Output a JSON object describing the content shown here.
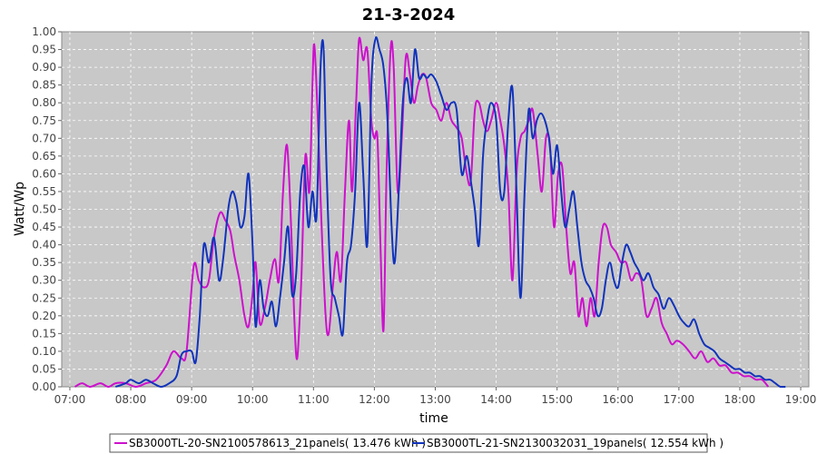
{
  "chart_data": {
    "type": "line",
    "title": "21-3-2024",
    "xlabel": "time",
    "ylabel": "Watt/Wp",
    "ylim": [
      0,
      1.0
    ],
    "xlim": [
      "06:52",
      "19:08"
    ],
    "x_ticks": [
      "07:00",
      "08:00",
      "09:00",
      "10:00",
      "11:00",
      "12:00",
      "13:00",
      "14:00",
      "15:00",
      "16:00",
      "17:00",
      "18:00",
      "19:00"
    ],
    "y_ticks": [
      "0.00",
      "0.05",
      "0.10",
      "0.15",
      "0.20",
      "0.25",
      "0.30",
      "0.35",
      "0.40",
      "0.45",
      "0.50",
      "0.55",
      "0.60",
      "0.65",
      "0.70",
      "0.75",
      "0.80",
      "0.85",
      "0.90",
      "0.95",
      "1.00"
    ],
    "grid": true,
    "legend_position": "bottom",
    "series": [
      {
        "name": "SB3000TL-20-SN2100578613_21panels( 13.476 kWh )",
        "color": "#cc11cc",
        "points": [
          [
            "07:05",
            0.0
          ],
          [
            "07:12",
            0.01
          ],
          [
            "07:20",
            0.0
          ],
          [
            "07:30",
            0.01
          ],
          [
            "07:38",
            0.0
          ],
          [
            "07:45",
            0.01
          ],
          [
            "07:55",
            0.01
          ],
          [
            "08:05",
            0.0
          ],
          [
            "08:15",
            0.01
          ],
          [
            "08:25",
            0.02
          ],
          [
            "08:35",
            0.06
          ],
          [
            "08:42",
            0.1
          ],
          [
            "08:50",
            0.08
          ],
          [
            "08:55",
            0.1
          ],
          [
            "09:02",
            0.34
          ],
          [
            "09:07",
            0.3
          ],
          [
            "09:12",
            0.28
          ],
          [
            "09:17",
            0.3
          ],
          [
            "09:22",
            0.42
          ],
          [
            "09:28",
            0.49
          ],
          [
            "09:33",
            0.47
          ],
          [
            "09:38",
            0.44
          ],
          [
            "09:42",
            0.37
          ],
          [
            "09:47",
            0.3
          ],
          [
            "09:52",
            0.2
          ],
          [
            "09:56",
            0.17
          ],
          [
            "10:00",
            0.26
          ],
          [
            "10:03",
            0.35
          ],
          [
            "10:07",
            0.18
          ],
          [
            "10:12",
            0.22
          ],
          [
            "10:17",
            0.3
          ],
          [
            "10:22",
            0.36
          ],
          [
            "10:26",
            0.3
          ],
          [
            "10:30",
            0.55
          ],
          [
            "10:34",
            0.68
          ],
          [
            "10:38",
            0.45
          ],
          [
            "10:41",
            0.2
          ],
          [
            "10:44",
            0.08
          ],
          [
            "10:48",
            0.3
          ],
          [
            "10:52",
            0.65
          ],
          [
            "10:56",
            0.55
          ],
          [
            "10:59",
            0.85
          ],
          [
            "11:01",
            0.96
          ],
          [
            "11:05",
            0.7
          ],
          [
            "11:08",
            0.45
          ],
          [
            "11:12",
            0.2
          ],
          [
            "11:15",
            0.15
          ],
          [
            "11:19",
            0.28
          ],
          [
            "11:23",
            0.38
          ],
          [
            "11:27",
            0.3
          ],
          [
            "11:31",
            0.55
          ],
          [
            "11:35",
            0.75
          ],
          [
            "11:38",
            0.55
          ],
          [
            "11:42",
            0.8
          ],
          [
            "11:45",
            0.98
          ],
          [
            "11:49",
            0.92
          ],
          [
            "11:53",
            0.95
          ],
          [
            "11:57",
            0.75
          ],
          [
            "12:00",
            0.7
          ],
          [
            "12:03",
            0.7
          ],
          [
            "12:06",
            0.4
          ],
          [
            "12:09",
            0.16
          ],
          [
            "12:12",
            0.6
          ],
          [
            "12:16",
            0.95
          ],
          [
            "12:19",
            0.9
          ],
          [
            "12:23",
            0.55
          ],
          [
            "12:27",
            0.7
          ],
          [
            "12:31",
            0.93
          ],
          [
            "12:35",
            0.88
          ],
          [
            "12:39",
            0.8
          ],
          [
            "12:43",
            0.85
          ],
          [
            "12:47",
            0.88
          ],
          [
            "12:51",
            0.87
          ],
          [
            "12:56",
            0.8
          ],
          [
            "13:01",
            0.78
          ],
          [
            "13:06",
            0.75
          ],
          [
            "13:11",
            0.8
          ],
          [
            "13:16",
            0.75
          ],
          [
            "13:21",
            0.73
          ],
          [
            "13:26",
            0.7
          ],
          [
            "13:31",
            0.6
          ],
          [
            "13:35",
            0.58
          ],
          [
            "13:39",
            0.78
          ],
          [
            "13:43",
            0.8
          ],
          [
            "13:47",
            0.75
          ],
          [
            "13:51",
            0.72
          ],
          [
            "13:55",
            0.75
          ],
          [
            "14:00",
            0.8
          ],
          [
            "14:04",
            0.75
          ],
          [
            "14:08",
            0.68
          ],
          [
            "14:12",
            0.55
          ],
          [
            "14:16",
            0.3
          ],
          [
            "14:20",
            0.6
          ],
          [
            "14:24",
            0.7
          ],
          [
            "14:28",
            0.72
          ],
          [
            "14:32",
            0.75
          ],
          [
            "14:36",
            0.78
          ],
          [
            "14:41",
            0.65
          ],
          [
            "14:45",
            0.55
          ],
          [
            "14:49",
            0.7
          ],
          [
            "14:53",
            0.68
          ],
          [
            "14:57",
            0.45
          ],
          [
            "15:01",
            0.6
          ],
          [
            "15:05",
            0.62
          ],
          [
            "15:09",
            0.45
          ],
          [
            "15:13",
            0.32
          ],
          [
            "15:17",
            0.35
          ],
          [
            "15:21",
            0.2
          ],
          [
            "15:25",
            0.25
          ],
          [
            "15:29",
            0.17
          ],
          [
            "15:33",
            0.25
          ],
          [
            "15:37",
            0.2
          ],
          [
            "15:41",
            0.35
          ],
          [
            "15:45",
            0.45
          ],
          [
            "15:49",
            0.45
          ],
          [
            "15:53",
            0.4
          ],
          [
            "15:58",
            0.38
          ],
          [
            "16:03",
            0.35
          ],
          [
            "16:08",
            0.35
          ],
          [
            "16:13",
            0.3
          ],
          [
            "16:18",
            0.32
          ],
          [
            "16:23",
            0.3
          ],
          [
            "16:28",
            0.2
          ],
          [
            "16:33",
            0.22
          ],
          [
            "16:38",
            0.25
          ],
          [
            "16:43",
            0.18
          ],
          [
            "16:48",
            0.15
          ],
          [
            "16:53",
            0.12
          ],
          [
            "16:58",
            0.13
          ],
          [
            "17:04",
            0.12
          ],
          [
            "17:10",
            0.1
          ],
          [
            "17:16",
            0.08
          ],
          [
            "17:22",
            0.1
          ],
          [
            "17:28",
            0.07
          ],
          [
            "17:34",
            0.08
          ],
          [
            "17:40",
            0.06
          ],
          [
            "17:46",
            0.06
          ],
          [
            "17:52",
            0.04
          ],
          [
            "17:58",
            0.04
          ],
          [
            "18:04",
            0.03
          ],
          [
            "18:10",
            0.03
          ],
          [
            "18:16",
            0.02
          ],
          [
            "18:22",
            0.02
          ],
          [
            "18:28",
            0.0
          ]
        ]
      },
      {
        "name": "SB3000TL-21-SN2130032031_19panels( 12.554 kWh )",
        "color": "#1133bb",
        "points": [
          [
            "07:45",
            0.0
          ],
          [
            "07:55",
            0.01
          ],
          [
            "08:00",
            0.02
          ],
          [
            "08:08",
            0.01
          ],
          [
            "08:15",
            0.02
          ],
          [
            "08:22",
            0.01
          ],
          [
            "08:30",
            0.0
          ],
          [
            "08:38",
            0.01
          ],
          [
            "08:45",
            0.03
          ],
          [
            "08:50",
            0.09
          ],
          [
            "08:55",
            0.1
          ],
          [
            "09:00",
            0.1
          ],
          [
            "09:04",
            0.07
          ],
          [
            "09:08",
            0.2
          ],
          [
            "09:12",
            0.4
          ],
          [
            "09:17",
            0.35
          ],
          [
            "09:22",
            0.42
          ],
          [
            "09:27",
            0.3
          ],
          [
            "09:31",
            0.36
          ],
          [
            "09:36",
            0.5
          ],
          [
            "09:40",
            0.55
          ],
          [
            "09:44",
            0.52
          ],
          [
            "09:48",
            0.45
          ],
          [
            "09:52",
            0.48
          ],
          [
            "09:56",
            0.6
          ],
          [
            "10:00",
            0.4
          ],
          [
            "10:03",
            0.17
          ],
          [
            "10:07",
            0.3
          ],
          [
            "10:11",
            0.22
          ],
          [
            "10:15",
            0.2
          ],
          [
            "10:19",
            0.24
          ],
          [
            "10:23",
            0.17
          ],
          [
            "10:27",
            0.25
          ],
          [
            "10:31",
            0.35
          ],
          [
            "10:35",
            0.45
          ],
          [
            "10:39",
            0.26
          ],
          [
            "10:43",
            0.32
          ],
          [
            "10:47",
            0.55
          ],
          [
            "10:51",
            0.62
          ],
          [
            "10:55",
            0.45
          ],
          [
            "10:59",
            0.55
          ],
          [
            "11:03",
            0.48
          ],
          [
            "11:07",
            0.9
          ],
          [
            "11:10",
            0.95
          ],
          [
            "11:13",
            0.6
          ],
          [
            "11:17",
            0.3
          ],
          [
            "11:21",
            0.25
          ],
          [
            "11:25",
            0.2
          ],
          [
            "11:29",
            0.15
          ],
          [
            "11:33",
            0.35
          ],
          [
            "11:37",
            0.4
          ],
          [
            "11:41",
            0.55
          ],
          [
            "11:45",
            0.8
          ],
          [
            "11:49",
            0.6
          ],
          [
            "11:53",
            0.4
          ],
          [
            "11:57",
            0.85
          ],
          [
            "12:01",
            0.98
          ],
          [
            "12:05",
            0.95
          ],
          [
            "12:09",
            0.9
          ],
          [
            "12:13",
            0.75
          ],
          [
            "12:17",
            0.45
          ],
          [
            "12:20",
            0.35
          ],
          [
            "12:24",
            0.55
          ],
          [
            "12:28",
            0.8
          ],
          [
            "12:32",
            0.87
          ],
          [
            "12:36",
            0.8
          ],
          [
            "12:40",
            0.95
          ],
          [
            "12:44",
            0.87
          ],
          [
            "12:48",
            0.88
          ],
          [
            "12:52",
            0.87
          ],
          [
            "12:56",
            0.88
          ],
          [
            "13:01",
            0.86
          ],
          [
            "13:06",
            0.82
          ],
          [
            "13:11",
            0.78
          ],
          [
            "13:16",
            0.8
          ],
          [
            "13:21",
            0.78
          ],
          [
            "13:26",
            0.6
          ],
          [
            "13:31",
            0.65
          ],
          [
            "13:35",
            0.58
          ],
          [
            "13:39",
            0.5
          ],
          [
            "13:43",
            0.4
          ],
          [
            "13:47",
            0.65
          ],
          [
            "13:51",
            0.75
          ],
          [
            "13:55",
            0.8
          ],
          [
            "14:00",
            0.75
          ],
          [
            "14:04",
            0.55
          ],
          [
            "14:08",
            0.55
          ],
          [
            "14:12",
            0.75
          ],
          [
            "14:16",
            0.84
          ],
          [
            "14:20",
            0.55
          ],
          [
            "14:24",
            0.25
          ],
          [
            "14:28",
            0.55
          ],
          [
            "14:32",
            0.78
          ],
          [
            "14:36",
            0.7
          ],
          [
            "14:40",
            0.75
          ],
          [
            "14:44",
            0.77
          ],
          [
            "14:48",
            0.75
          ],
          [
            "14:52",
            0.7
          ],
          [
            "14:56",
            0.6
          ],
          [
            "15:00",
            0.68
          ],
          [
            "15:04",
            0.55
          ],
          [
            "15:08",
            0.45
          ],
          [
            "15:12",
            0.5
          ],
          [
            "15:16",
            0.55
          ],
          [
            "15:20",
            0.45
          ],
          [
            "15:24",
            0.35
          ],
          [
            "15:28",
            0.3
          ],
          [
            "15:32",
            0.28
          ],
          [
            "15:36",
            0.25
          ],
          [
            "15:40",
            0.2
          ],
          [
            "15:44",
            0.22
          ],
          [
            "15:48",
            0.3
          ],
          [
            "15:52",
            0.35
          ],
          [
            "15:56",
            0.3
          ],
          [
            "16:00",
            0.28
          ],
          [
            "16:04",
            0.35
          ],
          [
            "16:08",
            0.4
          ],
          [
            "16:12",
            0.38
          ],
          [
            "16:16",
            0.35
          ],
          [
            "16:20",
            0.33
          ],
          [
            "16:25",
            0.3
          ],
          [
            "16:30",
            0.32
          ],
          [
            "16:35",
            0.28
          ],
          [
            "16:40",
            0.26
          ],
          [
            "16:45",
            0.22
          ],
          [
            "16:50",
            0.25
          ],
          [
            "16:55",
            0.23
          ],
          [
            "17:00",
            0.2
          ],
          [
            "17:05",
            0.18
          ],
          [
            "17:10",
            0.17
          ],
          [
            "17:15",
            0.19
          ],
          [
            "17:20",
            0.15
          ],
          [
            "17:25",
            0.12
          ],
          [
            "17:30",
            0.11
          ],
          [
            "17:35",
            0.1
          ],
          [
            "17:40",
            0.08
          ],
          [
            "17:45",
            0.07
          ],
          [
            "17:50",
            0.06
          ],
          [
            "17:55",
            0.05
          ],
          [
            "18:00",
            0.05
          ],
          [
            "18:05",
            0.04
          ],
          [
            "18:10",
            0.04
          ],
          [
            "18:15",
            0.03
          ],
          [
            "18:20",
            0.03
          ],
          [
            "18:25",
            0.02
          ],
          [
            "18:30",
            0.02
          ],
          [
            "18:35",
            0.01
          ],
          [
            "18:40",
            0.0
          ],
          [
            "18:45",
            0.0
          ]
        ]
      }
    ]
  }
}
